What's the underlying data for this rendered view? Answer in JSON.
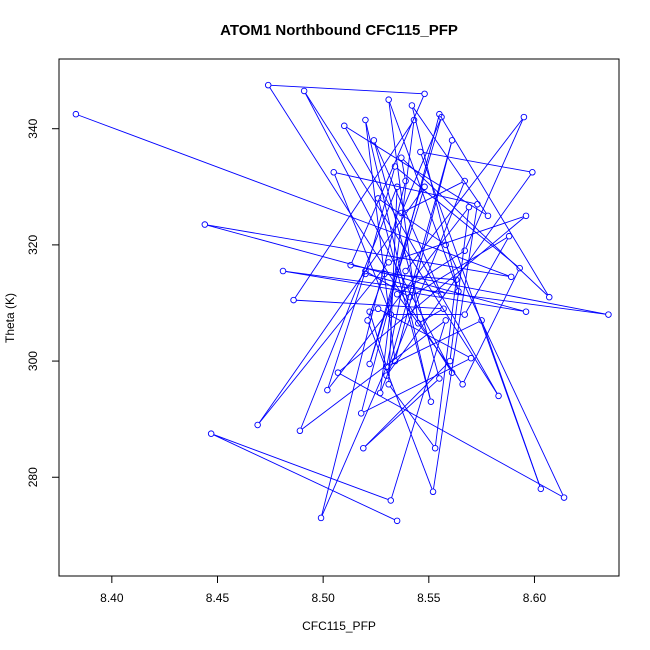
{
  "chart_data": {
    "type": "line",
    "title": "ATOM1 Northbound CFC115_PFP",
    "xlabel": "CFC115_PFP",
    "ylabel": "Theta (K)",
    "xlim": [
      8.375,
      8.64
    ],
    "ylim": [
      263,
      352
    ],
    "xticks": [
      "8.40",
      "8.45",
      "8.50",
      "8.55",
      "8.60"
    ],
    "yticks": [
      "280",
      "300",
      "320",
      "340"
    ],
    "grid": false,
    "line_color": "#0000ff",
    "marker": "open-circle",
    "series": [
      {
        "x": [
          8.383,
          8.589,
          8.444,
          8.596,
          8.481,
          8.635,
          8.513,
          8.548,
          8.474,
          8.561,
          8.491,
          8.583,
          8.51,
          8.578,
          8.542,
          8.564,
          8.531,
          8.545,
          8.557,
          8.486,
          8.543,
          8.527,
          8.567,
          8.537,
          8.556,
          8.522,
          8.548,
          8.469,
          8.531,
          8.596,
          8.507,
          8.614,
          8.558,
          8.526,
          8.551,
          8.52,
          8.534,
          8.561,
          8.53,
          8.599,
          8.546,
          8.603,
          8.575,
          8.53,
          8.499,
          8.539,
          8.537,
          8.607,
          8.555,
          8.518,
          8.57,
          8.526,
          8.522,
          8.53,
          8.539,
          8.595,
          8.567,
          8.535,
          8.566,
          8.593,
          8.534,
          8.52,
          8.556,
          8.524,
          8.555,
          8.519,
          8.56,
          8.569,
          8.502,
          8.52,
          8.541,
          8.588,
          8.567,
          8.532,
          8.505,
          8.573,
          8.552,
          8.521,
          8.529,
          8.563,
          8.553,
          8.531,
          8.535,
          8.489,
          8.558,
          8.532,
          8.447,
          8.535
        ],
        "y": [
          342.5,
          314.5,
          323.5,
          308.5,
          315.5,
          308.0,
          316.5,
          346.0,
          347.5,
          298.0,
          346.5,
          294.0,
          340.5,
          325.0,
          344.0,
          312.0,
          345.0,
          306.5,
          309.0,
          310.5,
          341.5,
          294.5,
          331.0,
          325.5,
          342.0,
          299.5,
          330.0,
          289.0,
          317.0,
          325.0,
          298.0,
          276.5,
          320.0,
          328.0,
          293.0,
          341.5,
          300.0,
          338.0,
          297.5,
          332.5,
          336.0,
          278.0,
          307.0,
          299.0,
          273.0,
          331.0,
          335.0,
          311.0,
          342.5,
          291.0,
          300.5,
          309.0,
          308.5,
          299.0,
          315.5,
          342.0,
          319.0,
          311.5,
          296.0,
          316.0,
          333.5,
          315.0,
          311.5,
          338.0,
          297.0,
          285.0,
          300.0,
          326.5,
          295.0,
          315.5,
          311.0,
          321.5,
          308.0,
          308.0,
          332.5,
          327.0,
          277.5,
          307.0,
          315.0,
          314.0,
          285.0,
          296.0,
          330.0,
          288.0,
          307.0,
          276.0,
          287.5,
          272.5
        ]
      }
    ]
  }
}
